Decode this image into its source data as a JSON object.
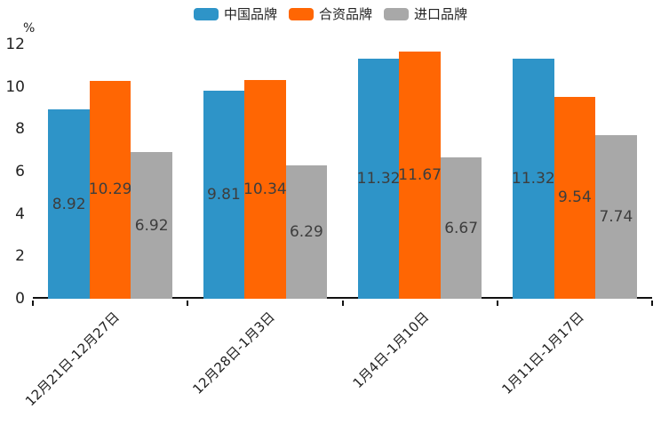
{
  "chart_data": {
    "type": "bar",
    "title": "",
    "categories": [
      "12月21日-12月27日",
      "12月28日-1月3日",
      "1月4日-1月10日",
      "1月11日-1月17日"
    ],
    "series": [
      {
        "name": "中国品牌",
        "color": "#2E94C8",
        "values": [
          8.92,
          9.81,
          11.32,
          11.32
        ]
      },
      {
        "name": "合资品牌",
        "color": "#FF6603",
        "values": [
          10.29,
          10.34,
          11.67,
          9.54
        ]
      },
      {
        "name": "进口品牌",
        "color": "#A8A8A8",
        "values": [
          6.92,
          6.29,
          6.67,
          7.74
        ]
      }
    ],
    "xlabel": "",
    "ylabel": "%",
    "ylim": [
      0,
      12
    ],
    "yticks": [
      0,
      2,
      4,
      6,
      8,
      10,
      12
    ],
    "legend_position": "top",
    "grid": false,
    "value_labels": "centered-inside-bars",
    "axis_color": "#111111"
  }
}
